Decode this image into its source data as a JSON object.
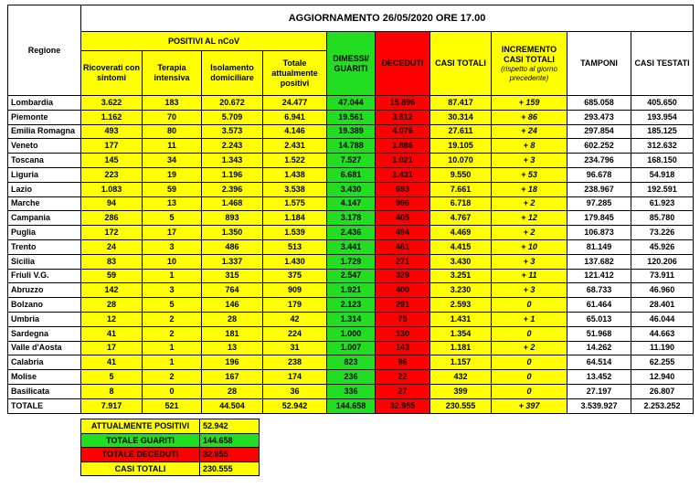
{
  "header": {
    "title": "AGGIORNAMENTO 26/05/2020 ORE 17.00",
    "region_label": "Regione",
    "group_label": "POSITIVI AL nCoV",
    "columns": [
      "Ricoverati con sintomi",
      "Terapia intensiva",
      "Isolamento domiciliare",
      "Totale attualmente positivi",
      "DIMESSI/ GUARITI",
      "DECEDUTI",
      "CASI TOTALI",
      "INCREMENTO CASI TOTALI",
      "TAMPONI",
      "CASI TESTATI"
    ],
    "increment_note": "(rispetto al giorno precedente)"
  },
  "table": {
    "rows": [
      [
        "Lombardia",
        "3.622",
        "183",
        "20.672",
        "24.477",
        "47.044",
        "15.896",
        "87.417",
        "+ 159",
        "685.058",
        "405.650"
      ],
      [
        "Piemonte",
        "1.162",
        "70",
        "5.709",
        "6.941",
        "19.561",
        "3.812",
        "30.314",
        "+ 86",
        "293.473",
        "193.954"
      ],
      [
        "Emilia Romagna",
        "493",
        "80",
        "3.573",
        "4.146",
        "19.389",
        "4.076",
        "27.611",
        "+ 24",
        "297.854",
        "185.125"
      ],
      [
        "Veneto",
        "177",
        "11",
        "2.243",
        "2.431",
        "14.788",
        "1.886",
        "19.105",
        "+ 8",
        "602.252",
        "312.632"
      ],
      [
        "Toscana",
        "145",
        "34",
        "1.343",
        "1.522",
        "7.527",
        "1.021",
        "10.070",
        "+ 3",
        "234.796",
        "168.150"
      ],
      [
        "Liguria",
        "223",
        "19",
        "1.196",
        "1.438",
        "6.681",
        "1.431",
        "9.550",
        "+ 53",
        "96.678",
        "54.918"
      ],
      [
        "Lazio",
        "1.083",
        "59",
        "2.396",
        "3.538",
        "3.430",
        "693",
        "7.661",
        "+ 18",
        "238.967",
        "192.591"
      ],
      [
        "Marche",
        "94",
        "13",
        "1.468",
        "1.575",
        "4.147",
        "996",
        "6.718",
        "+ 2",
        "97.285",
        "61.923"
      ],
      [
        "Campania",
        "286",
        "5",
        "893",
        "1.184",
        "3.178",
        "405",
        "4.767",
        "+ 12",
        "179.845",
        "85.780"
      ],
      [
        "Puglia",
        "172",
        "17",
        "1.350",
        "1.539",
        "2.436",
        "494",
        "4.469",
        "+ 2",
        "106.873",
        "73.226"
      ],
      [
        "Trento",
        "24",
        "3",
        "486",
        "513",
        "3.441",
        "461",
        "4.415",
        "+ 10",
        "81.149",
        "45.926"
      ],
      [
        "Sicilia",
        "83",
        "10",
        "1.337",
        "1.430",
        "1.729",
        "271",
        "3.430",
        "+ 3",
        "137.682",
        "120.206"
      ],
      [
        "Friuli V.G.",
        "59",
        "1",
        "315",
        "375",
        "2.547",
        "329",
        "3.251",
        "+ 11",
        "121.412",
        "73.911"
      ],
      [
        "Abruzzo",
        "142",
        "3",
        "764",
        "909",
        "1.921",
        "400",
        "3.230",
        "+ 3",
        "68.733",
        "46.960"
      ],
      [
        "Bolzano",
        "28",
        "5",
        "146",
        "179",
        "2.123",
        "291",
        "2.593",
        "0",
        "61.464",
        "28.401"
      ],
      [
        "Umbria",
        "12",
        "2",
        "28",
        "42",
        "1.314",
        "75",
        "1.431",
        "+ 1",
        "65.013",
        "46.044"
      ],
      [
        "Sardegna",
        "41",
        "2",
        "181",
        "224",
        "1.000",
        "130",
        "1.354",
        "0",
        "51.968",
        "44.663"
      ],
      [
        "Valle d'Aosta",
        "17",
        "1",
        "13",
        "31",
        "1.007",
        "143",
        "1.181",
        "+ 2",
        "14.262",
        "11.190"
      ],
      [
        "Calabria",
        "41",
        "1",
        "196",
        "238",
        "823",
        "96",
        "1.157",
        "0",
        "64.514",
        "62.255"
      ],
      [
        "Molise",
        "5",
        "2",
        "167",
        "174",
        "236",
        "22",
        "432",
        "0",
        "13.452",
        "12.940"
      ],
      [
        "Basilicata",
        "8",
        "0",
        "28",
        "36",
        "336",
        "27",
        "399",
        "0",
        "27.197",
        "26.807"
      ],
      [
        "TOTALE",
        "7.917",
        "521",
        "44.504",
        "52.942",
        "144.658",
        "32.955",
        "230.555",
        "+ 397",
        "3.539.927",
        "2.253.252"
      ]
    ]
  },
  "summary": [
    {
      "label": "ATTUALMENTE POSITIVI",
      "value": "52.942"
    },
    {
      "label": "TOTALE GUARITI",
      "value": "144.658"
    },
    {
      "label": "TOTALE DECEDUTI",
      "value": "32.955"
    },
    {
      "label": "CASI TOTALI",
      "value": "230.555"
    }
  ]
}
